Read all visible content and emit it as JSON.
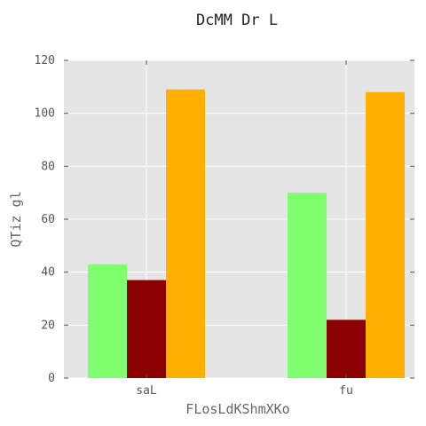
{
  "chart_data": {
    "type": "bar",
    "title": "DcMM Dr L",
    "xlabel": "FLosLdKShmXKo",
    "ylabel": "QTiz gl",
    "categories": [
      "saL",
      "fu"
    ],
    "series": [
      {
        "values": [
          43,
          70
        ],
        "color": "#80ff6e"
      },
      {
        "values": [
          37,
          22
        ],
        "color": "#8b0000"
      },
      {
        "values": [
          109,
          108
        ],
        "color": "#ffb000"
      }
    ],
    "ylim": [
      0,
      120
    ],
    "yticks": [
      0,
      20,
      40,
      60,
      80,
      100,
      120
    ],
    "grid": true,
    "background": "#e5e5e5",
    "legend": "none"
  }
}
